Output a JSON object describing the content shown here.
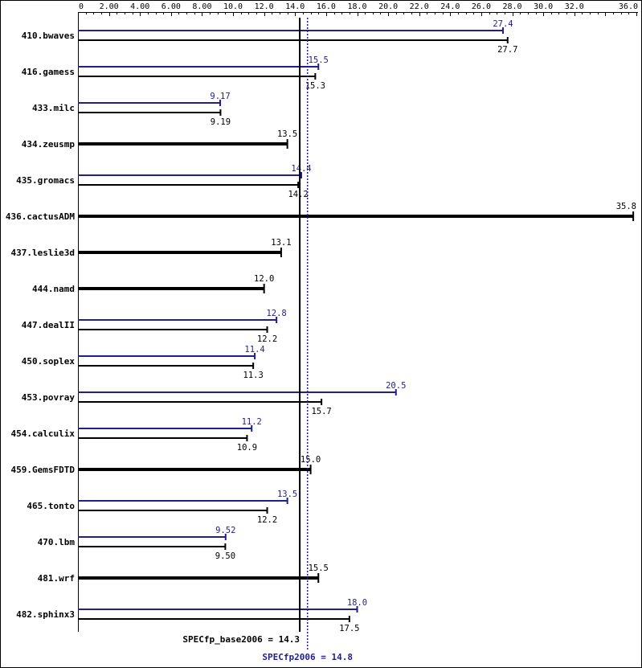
{
  "chart_data": {
    "type": "bar",
    "orientation": "horizontal",
    "xlim": [
      0,
      36.0
    ],
    "ticks": [
      {
        "value": 0,
        "label": "0"
      },
      {
        "value": 2,
        "label": "2.00"
      },
      {
        "value": 4,
        "label": "4.00"
      },
      {
        "value": 6,
        "label": "6.00"
      },
      {
        "value": 8,
        "label": "8.00"
      },
      {
        "value": 10,
        "label": "10.0"
      },
      {
        "value": 12,
        "label": "12.0"
      },
      {
        "value": 14,
        "label": "14.0"
      },
      {
        "value": 16,
        "label": "16.0"
      },
      {
        "value": 18,
        "label": "18.0"
      },
      {
        "value": 20,
        "label": "20.0"
      },
      {
        "value": 22,
        "label": "22.0"
      },
      {
        "value": 24,
        "label": "24.0"
      },
      {
        "value": 26,
        "label": "26.0"
      },
      {
        "value": 28,
        "label": "28.0"
      },
      {
        "value": 30,
        "label": "30.0"
      },
      {
        "value": 32,
        "label": "32.0"
      },
      {
        "value": 36,
        "label": "36.0"
      }
    ],
    "colors": {
      "peak": "#1f1f8f",
      "base": "#000000"
    },
    "benchmarks": [
      {
        "name": "410.bwaves",
        "peak": 27.4,
        "peak_label": "27.4",
        "base": 27.7,
        "base_label": "27.7"
      },
      {
        "name": "416.gamess",
        "peak": 15.5,
        "peak_label": "15.5",
        "base": 15.3,
        "base_label": "15.3"
      },
      {
        "name": "433.milc",
        "peak": 9.17,
        "peak_label": "9.17",
        "base": 9.19,
        "base_label": "9.19"
      },
      {
        "name": "434.zeusmp",
        "peak": null,
        "peak_label": null,
        "base": 13.5,
        "base_label": "13.5"
      },
      {
        "name": "435.gromacs",
        "peak": 14.4,
        "peak_label": "14.4",
        "base": 14.2,
        "base_label": "14.2"
      },
      {
        "name": "436.cactusADM",
        "peak": null,
        "peak_label": null,
        "base": 35.8,
        "base_label": "35.8"
      },
      {
        "name": "437.leslie3d",
        "peak": null,
        "peak_label": null,
        "base": 13.1,
        "base_label": "13.1"
      },
      {
        "name": "444.namd",
        "peak": null,
        "peak_label": null,
        "base": 12.0,
        "base_label": "12.0"
      },
      {
        "name": "447.dealII",
        "peak": 12.8,
        "peak_label": "12.8",
        "base": 12.2,
        "base_label": "12.2"
      },
      {
        "name": "450.soplex",
        "peak": 11.4,
        "peak_label": "11.4",
        "base": 11.3,
        "base_label": "11.3"
      },
      {
        "name": "453.povray",
        "peak": 20.5,
        "peak_label": "20.5",
        "base": 15.7,
        "base_label": "15.7"
      },
      {
        "name": "454.calculix",
        "peak": 11.2,
        "peak_label": "11.2",
        "base": 10.9,
        "base_label": "10.9"
      },
      {
        "name": "459.GemsFDTD",
        "peak": null,
        "peak_label": null,
        "base": 15.0,
        "base_label": "15.0"
      },
      {
        "name": "465.tonto",
        "peak": 13.5,
        "peak_label": "13.5",
        "base": 12.2,
        "base_label": "12.2"
      },
      {
        "name": "470.lbm",
        "peak": 9.52,
        "peak_label": "9.52",
        "base": 9.5,
        "base_label": "9.50"
      },
      {
        "name": "481.wrf",
        "peak": null,
        "peak_label": null,
        "base": 15.5,
        "base_label": "15.5"
      },
      {
        "name": "482.sphinx3",
        "peak": 18.0,
        "peak_label": "18.0",
        "base": 17.5,
        "base_label": "17.5"
      }
    ],
    "summary": {
      "base_value": 14.3,
      "base_label": "SPECfp_base2006 = 14.3",
      "peak_value": 14.8,
      "peak_label": "SPECfp2006 = 14.8"
    }
  }
}
